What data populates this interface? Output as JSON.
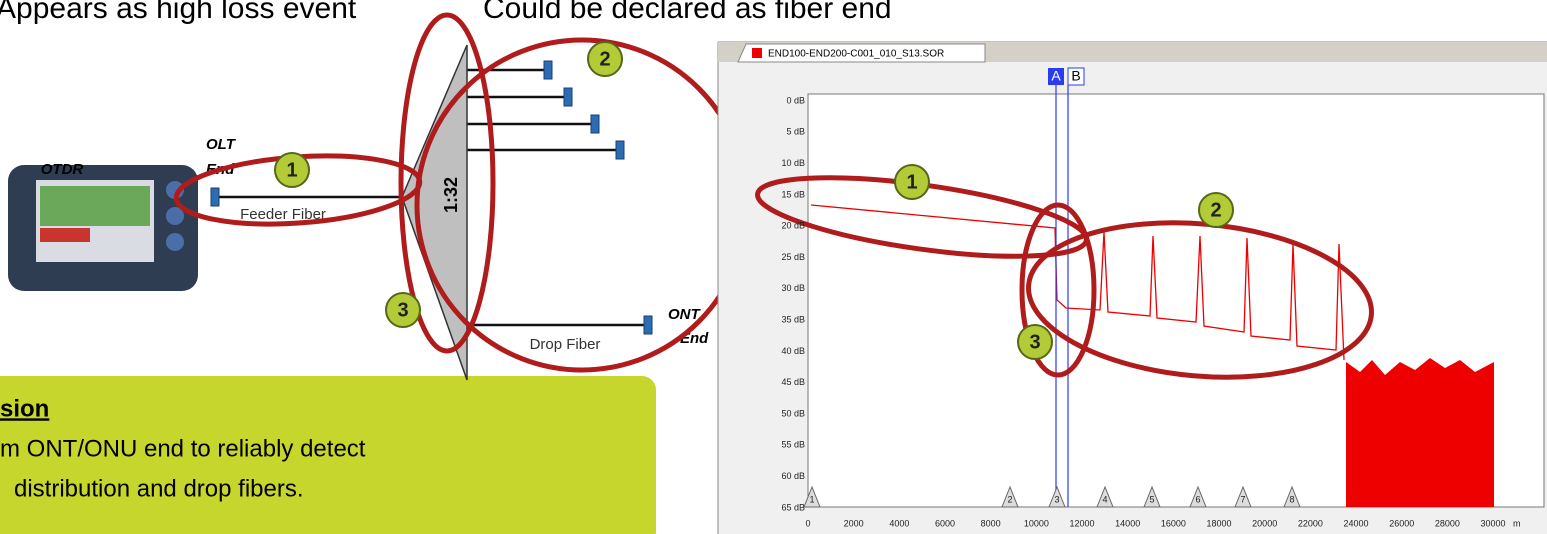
{
  "header": {
    "left": "Appears as high loss event",
    "right": "Could be declared as fiber end"
  },
  "diagram": {
    "device": "OTDR",
    "olt_end": [
      "OLT",
      "End"
    ],
    "feeder": "Feeder Fiber",
    "splitter": "1:32",
    "ont_end": [
      "ONT",
      "End"
    ],
    "drop": "Drop Fiber",
    "callouts": [
      "1",
      "2",
      "3"
    ]
  },
  "conclusion": {
    "title": "sion",
    "lines": [
      "m ONT/ONU end to reliably detect",
      "distribution and drop fibers."
    ]
  },
  "trace": {
    "tab": "END100-END200-C001_010_S13.SOR",
    "cursors": [
      "A",
      "B"
    ],
    "y_labels": [
      "0 dB",
      "5 dB",
      "10 dB",
      "15 dB",
      "20 dB",
      "25 dB",
      "30 dB",
      "35 dB",
      "40 dB",
      "45 dB",
      "50 dB",
      "55 dB",
      "60 dB",
      "65 dB"
    ],
    "x_labels": [
      "0",
      "2000",
      "4000",
      "6000",
      "8000",
      "10000",
      "12000",
      "14000",
      "16000",
      "18000",
      "20000",
      "22000",
      "24000",
      "26000",
      "28000",
      "30000"
    ],
    "x_unit": "m",
    "events": [
      "1",
      "2",
      "3",
      "4",
      "5",
      "6",
      "7",
      "8"
    ],
    "callouts": [
      "1",
      "2",
      "3"
    ]
  }
}
